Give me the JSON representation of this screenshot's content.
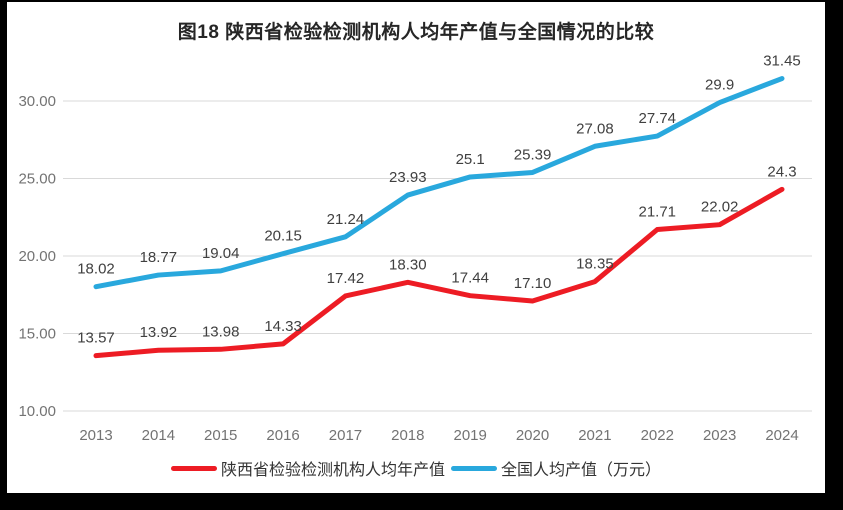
{
  "chart_data": {
    "type": "line",
    "title": "图18 陕西省检验检测机构人均年产值与全国情况的比较",
    "categories": [
      "2013",
      "2014",
      "2015",
      "2016",
      "2017",
      "2018",
      "2019",
      "2020",
      "2021",
      "2022",
      "2023",
      "2024"
    ],
    "series": [
      {
        "name": "陕西省检验检测机构人均年产值",
        "color": "#ed1c24",
        "values": [
          13.57,
          13.92,
          13.98,
          14.33,
          17.42,
          18.3,
          17.44,
          17.1,
          18.35,
          21.71,
          22.02,
          24.3
        ],
        "labels": [
          "13.57",
          "13.92",
          "13.98",
          "14.33",
          "17.42",
          "18.30",
          "17.44",
          "17.10",
          "18.35",
          "21.71",
          "22.02",
          "24.3"
        ]
      },
      {
        "name": "全国人均产值（万元）",
        "color": "#29a8dd",
        "values": [
          18.02,
          18.77,
          19.04,
          20.15,
          21.24,
          23.93,
          25.1,
          25.39,
          27.08,
          27.74,
          29.9,
          31.45
        ],
        "labels": [
          "18.02",
          "18.77",
          "19.04",
          "20.15",
          "21.24",
          "23.93",
          "25.1",
          "25.39",
          "27.08",
          "27.74",
          "29.9",
          "31.45"
        ]
      }
    ],
    "yticks": [
      10,
      15,
      20,
      25,
      30
    ],
    "ytick_labels": [
      "10.00",
      "15.00",
      "20.00",
      "25.00",
      "30.00"
    ],
    "ylim": [
      10,
      32.6
    ],
    "grid": true,
    "legend_position": "bottom",
    "colors": {
      "gridline": "#d9d9d9",
      "axis_text": "#737373",
      "data_label_text": "#404040",
      "title_text": "#262626",
      "background": "#ffffff",
      "frame": "#000000"
    }
  }
}
